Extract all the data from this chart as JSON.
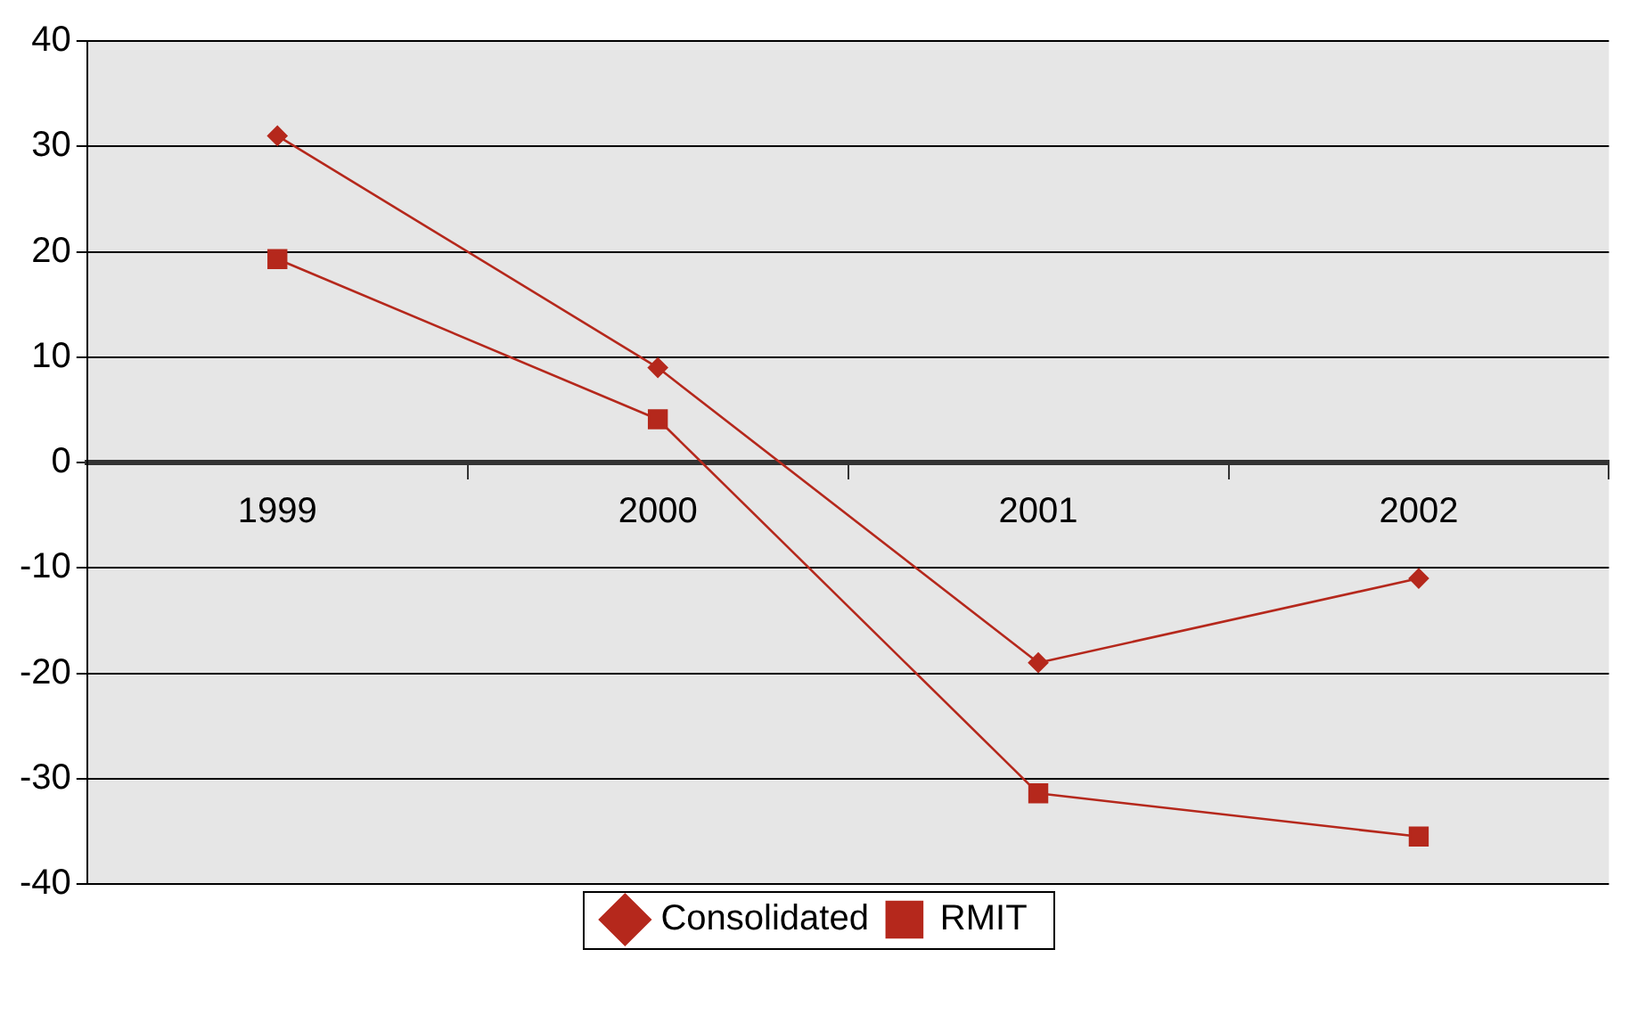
{
  "chart_data": {
    "type": "line",
    "categories": [
      "1999",
      "2000",
      "2001",
      "2002"
    ],
    "series": [
      {
        "name": "Consolidated",
        "color": "#b5281c",
        "marker": "diamond",
        "values": [
          31,
          9,
          -19,
          -11
        ]
      },
      {
        "name": "RMIT",
        "color": "#b5281c",
        "marker": "square",
        "values": [
          19.3,
          4.1,
          -31.4,
          -35.5
        ]
      }
    ],
    "ylim": [
      -40,
      40
    ],
    "yticks": [
      -40,
      -30,
      -20,
      -10,
      0,
      10,
      20,
      30,
      40
    ],
    "grid": "y",
    "legend": "bottom",
    "line_style": "solid"
  }
}
